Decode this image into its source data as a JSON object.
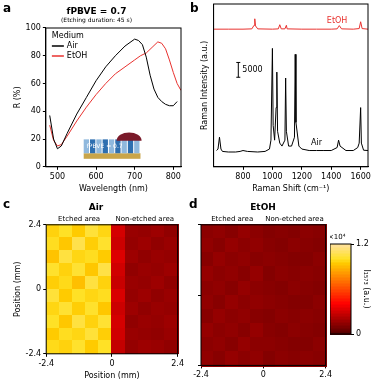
{
  "chart_data": [
    {
      "panel": "a",
      "type": "line",
      "title": "fPBVE = 0.7",
      "subtitle": "(Etching duration: 45 s)",
      "x_label": "Wavelength (nm)",
      "y_label": "R (%)",
      "xlim": [
        470,
        820
      ],
      "xticks": [
        500,
        600,
        700,
        800
      ],
      "ylim": [
        0,
        100
      ],
      "yticks": [
        0,
        20,
        40,
        60,
        80,
        100
      ],
      "grid": false,
      "legend": "upper left",
      "legend_title": "Medium",
      "annotations": [
        {
          "text": "fPBVE = 0.7"
        }
      ],
      "series": [
        {
          "name": "Air",
          "color": "#000000",
          "x": [
            480,
            490,
            500,
            510,
            525,
            550,
            575,
            600,
            625,
            650,
            675,
            700,
            710,
            720,
            730,
            740,
            750,
            760,
            770,
            780,
            790,
            800,
            810
          ],
          "values": [
            37,
            20,
            13,
            15,
            24,
            38,
            50,
            62,
            72,
            80,
            87,
            92,
            91,
            88,
            79,
            66,
            56,
            50,
            47,
            45,
            44,
            44,
            47
          ]
        },
        {
          "name": "EtOH",
          "color": "#e8322f",
          "x": [
            480,
            490,
            500,
            510,
            525,
            550,
            575,
            600,
            625,
            650,
            675,
            700,
            715,
            730,
            745,
            760,
            770,
            780,
            790,
            800,
            810,
            820
          ],
          "values": [
            30,
            19,
            15,
            16,
            22,
            33,
            43,
            52,
            60,
            67,
            72,
            77,
            80,
            82,
            86,
            90,
            89,
            85,
            77,
            68,
            60,
            55
          ]
        }
      ]
    },
    {
      "panel": "b",
      "type": "line",
      "x_label": "Raman Shift (cm⁻¹)",
      "y_label": "Raman Intensity (a.u.)",
      "xlim": [
        600,
        1650
      ],
      "xticks": [
        800,
        1000,
        1200,
        1400,
        1600
      ],
      "ylim": [
        0,
        55000
      ],
      "yticks": [],
      "grid": false,
      "tick_labels": "x",
      "scale_bar": 5000,
      "series": [
        {
          "name": "EtOH",
          "color": "#e8322f",
          "x": [
            600,
            700,
            800,
            860,
            875,
            880,
            885,
            900,
            1000,
            1040,
            1050,
            1060,
            1085,
            1095,
            1100,
            1200,
            1300,
            1400,
            1440,
            1455,
            1470,
            1550,
            1590,
            1600,
            1610,
            1650
          ],
          "values": [
            46500,
            46500,
            46500,
            46600,
            47800,
            50000,
            47600,
            46600,
            46500,
            46600,
            48000,
            46600,
            46600,
            47800,
            46600,
            46500,
            46500,
            46500,
            46600,
            47700,
            46600,
            46500,
            46700,
            49000,
            46700,
            46500
          ]
        },
        {
          "name": "Air",
          "color": "#000000",
          "x": [
            620,
            630,
            640,
            650,
            660,
            700,
            750,
            780,
            800,
            830,
            900,
            950,
            980,
            990,
            1000,
            1005,
            1015,
            1025,
            1030,
            1035,
            1050,
            1065,
            1085,
            1090,
            1095,
            1110,
            1130,
            1150,
            1155,
            1160,
            1180,
            1200,
            1250,
            1300,
            1350,
            1400,
            1440,
            1450,
            1460,
            1500,
            1550,
            1580,
            1590,
            1600,
            1605,
            1620,
            1650
          ],
          "values": [
            5500,
            6000,
            10000,
            6000,
            5200,
            5000,
            5000,
            5200,
            5500,
            5200,
            5000,
            5200,
            6000,
            9000,
            40000,
            14000,
            9000,
            20000,
            32000,
            12000,
            8000,
            7000,
            9000,
            30000,
            12000,
            7000,
            7000,
            10000,
            38000,
            15000,
            7000,
            6000,
            5500,
            5500,
            5500,
            5500,
            6500,
            9000,
            7000,
            5500,
            5500,
            6500,
            8000,
            20000,
            8000,
            5600,
            5500
          ]
        }
      ]
    },
    {
      "panel": "c",
      "type": "heatmap",
      "title": "Air",
      "x_label": "Position (mm)",
      "y_label": "Position (mm)",
      "xlim": [
        -2.4,
        2.4
      ],
      "xticks": [
        -2.4,
        0,
        2.4
      ],
      "ylim": [
        -2.4,
        2.4
      ],
      "yticks": [
        -2.4,
        0,
        2.4
      ],
      "annotations": [
        {
          "text": "Etched area",
          "x": -1.2
        },
        {
          "text": "Non-etched area",
          "x": 1.2
        }
      ],
      "cells": [
        [
          9800,
          10200,
          9600,
          10500,
          9900,
          3200,
          1800,
          1700,
          1900,
          1600
        ],
        [
          10100,
          9500,
          10800,
          9700,
          10300,
          3000,
          1700,
          1900,
          1600,
          1800
        ],
        [
          9400,
          10600,
          9900,
          10100,
          9600,
          3400,
          1900,
          1600,
          1800,
          1700
        ],
        [
          10300,
          9800,
          10400,
          9500,
          10700,
          3100,
          1600,
          1800,
          1700,
          1900
        ],
        [
          9700,
          10000,
          9300,
          10600,
          9800,
          2900,
          1800,
          1700,
          1900,
          1600
        ],
        [
          10500,
          9600,
          10200,
          9900,
          10100,
          3300,
          1700,
          1900,
          1600,
          1800
        ],
        [
          9900,
          10400,
          9700,
          10300,
          9500,
          3000,
          1900,
          1600,
          1800,
          1700
        ],
        [
          10200,
          9500,
          10600,
          9800,
          10400,
          3200,
          1600,
          1800,
          1700,
          1900
        ],
        [
          9600,
          10100,
          9900,
          10500,
          9700,
          3100,
          1800,
          1700,
          1600,
          1800
        ],
        [
          10000,
          9800,
          10300,
          9600,
          10200,
          2800,
          1700,
          1900,
          1800,
          1600
        ]
      ]
    },
    {
      "panel": "d",
      "type": "heatmap",
      "title": "EtOH",
      "xlim": [
        -2.4,
        2.4
      ],
      "xticks": [
        -2.4,
        0,
        2.4
      ],
      "ylim": [
        -2.4,
        2.4
      ],
      "yticks": [
        -2.4,
        0,
        2.4
      ],
      "tick_labels": "x",
      "annotations": [
        {
          "text": "Etched area",
          "x": -1.2
        },
        {
          "text": "Non-etched area",
          "x": 1.2
        }
      ],
      "cells": [
        [
          1500,
          1600,
          1400,
          1700,
          1500,
          1300,
          1400,
          1300,
          1500,
          1400
        ],
        [
          1600,
          1400,
          1700,
          1500,
          1600,
          1400,
          1300,
          1500,
          1400,
          1300
        ],
        [
          1400,
          1700,
          1500,
          1600,
          1400,
          1500,
          1400,
          1300,
          1300,
          1500
        ],
        [
          1700,
          1500,
          1600,
          1400,
          1700,
          1300,
          1500,
          1400,
          1500,
          1400
        ],
        [
          1500,
          1600,
          1400,
          1700,
          1500,
          1400,
          1300,
          1500,
          1400,
          1300
        ],
        [
          1600,
          1400,
          1700,
          1500,
          1600,
          1500,
          1400,
          1300,
          1300,
          1500
        ],
        [
          1400,
          1700,
          1500,
          1600,
          1400,
          1300,
          1500,
          1400,
          1500,
          1400
        ],
        [
          1700,
          1500,
          1600,
          1400,
          1700,
          1400,
          1300,
          1500,
          1400,
          1300
        ],
        [
          1500,
          1600,
          1400,
          1700,
          1500,
          1500,
          1400,
          1300,
          1300,
          1500
        ],
        [
          1600,
          1400,
          1700,
          1500,
          1600,
          1300,
          1500,
          1400,
          1500,
          1400
        ]
      ],
      "colorbar": {
        "range": [
          0,
          12000
        ],
        "ticks": [
          {
            "value": 0,
            "label": "0"
          },
          {
            "value": 12000,
            "label": "1.2"
          }
        ],
        "label": "I₁₅₇₃ (a.u.)",
        "multiplier": "×10⁴"
      }
    }
  ]
}
